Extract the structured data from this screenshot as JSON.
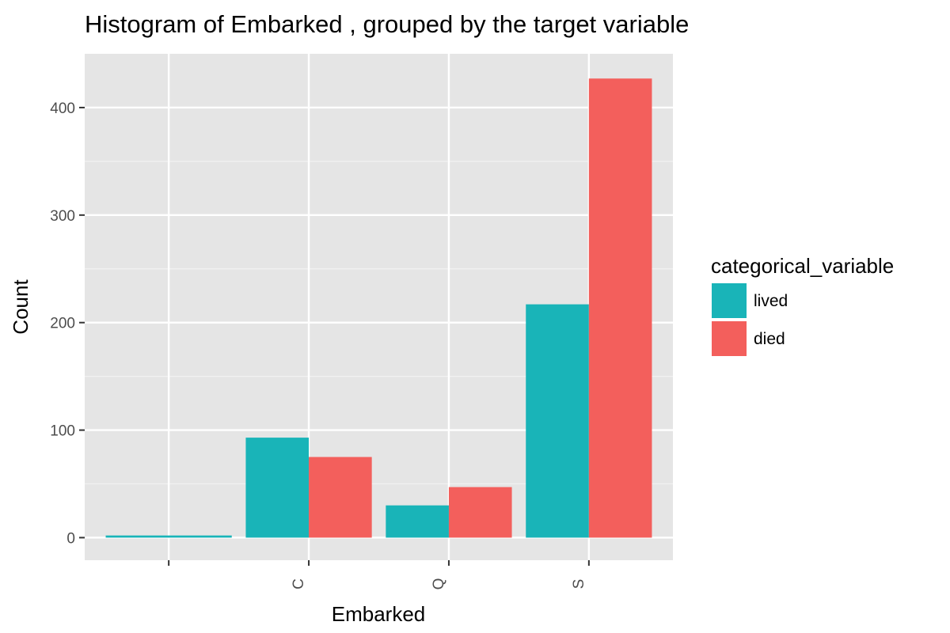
{
  "chart_data": {
    "type": "bar",
    "title": "Histogram of Embarked , grouped by the target variable",
    "xlabel": "Embarked",
    "ylabel": "Count",
    "categories": [
      "",
      "C",
      "Q",
      "S"
    ],
    "series": [
      {
        "name": "lived",
        "color": "#19b4b8",
        "values": [
          2,
          93,
          30,
          217
        ]
      },
      {
        "name": "died",
        "color": "#f35f5c",
        "values": [
          0,
          75,
          47,
          427
        ]
      }
    ],
    "yticks": [
      0,
      100,
      200,
      300,
      400
    ],
    "ylim": [
      -21,
      450
    ],
    "grid": true,
    "panel_background": "#e5e5e5",
    "legend": {
      "title": "categorical_variable",
      "position": "right"
    }
  }
}
